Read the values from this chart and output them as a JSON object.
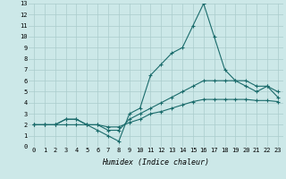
{
  "xlabel": "Humidex (Indice chaleur)",
  "bg_color": "#cce8e8",
  "grid_color": "#aacccc",
  "line_color": "#1a6b6b",
  "xlim": [
    -0.5,
    23.5
  ],
  "ylim": [
    0,
    13
  ],
  "xticks": [
    0,
    1,
    2,
    3,
    4,
    5,
    6,
    7,
    8,
    9,
    10,
    11,
    12,
    13,
    14,
    15,
    16,
    17,
    18,
    19,
    20,
    21,
    22,
    23
  ],
  "yticks": [
    0,
    1,
    2,
    3,
    4,
    5,
    6,
    7,
    8,
    9,
    10,
    11,
    12,
    13
  ],
  "series": [
    [
      2,
      2,
      2,
      2.5,
      2.5,
      2,
      1.5,
      1,
      0.5,
      3,
      3.5,
      6.5,
      7.5,
      8.5,
      9,
      11,
      13,
      10,
      7,
      6,
      5.5,
      5,
      5.5,
      4.5
    ],
    [
      2,
      2,
      2,
      2.5,
      2.5,
      2,
      2,
      1.5,
      1.5,
      2.5,
      3,
      3.5,
      4,
      4.5,
      5,
      5.5,
      6,
      6,
      6,
      6,
      6,
      5.5,
      5.5,
      5
    ],
    [
      2,
      2,
      2,
      2,
      2,
      2,
      2,
      1.8,
      1.8,
      2.2,
      2.5,
      3,
      3.2,
      3.5,
      3.8,
      4.1,
      4.3,
      4.3,
      4.3,
      4.3,
      4.3,
      4.2,
      4.2,
      4.1
    ]
  ],
  "tick_fontsize": 5.0,
  "xlabel_fontsize": 6.0,
  "linewidth": 0.8,
  "markersize": 3.0
}
